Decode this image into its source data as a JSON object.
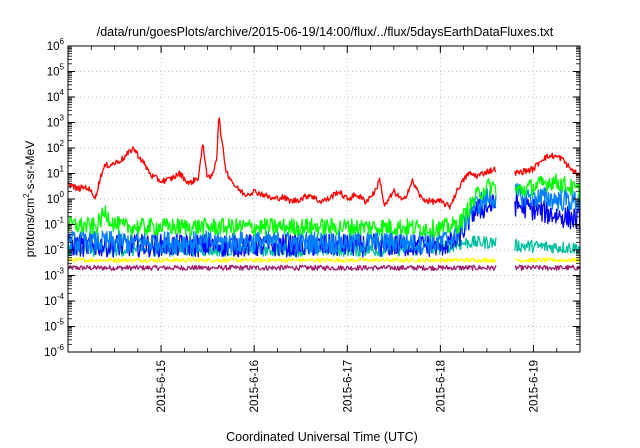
{
  "chart_data": {
    "type": "line",
    "title": "/data/run/goesPlots/archive/2015-06-19/14:00/flux/../flux/5daysEarthDataFluxes.txt",
    "xlabel": "Coordinated Universal Time (UTC)",
    "ylabel_parts": {
      "prefix": "protons/cm",
      "sup": "2",
      "suffix": "-s-sr-MeV"
    },
    "yscale": "log",
    "ylim_exp": [
      -6,
      6
    ],
    "ytick_exps": [
      -6,
      -5,
      -4,
      -3,
      -2,
      -1,
      0,
      1,
      2,
      3,
      4,
      5,
      6
    ],
    "ytick_base": "10",
    "xlim": [
      0,
      5.5
    ],
    "xtick_positions": [
      1,
      2,
      3,
      4,
      5
    ],
    "xtick_labels": [
      "2015-6-15",
      "2015-6-16",
      "2015-6-17",
      "2015-6-18",
      "2015-6-19"
    ],
    "grid": true,
    "legend": "none",
    "gaps": [
      [
        4.6,
        4.8
      ]
    ],
    "series": [
      {
        "color": "#ff0000",
        "noise": 0.12,
        "x": [
          0,
          0.1,
          0.2,
          0.3,
          0.35,
          0.4,
          0.5,
          0.6,
          0.7,
          0.8,
          0.9,
          1.0,
          1.1,
          1.2,
          1.3,
          1.4,
          1.45,
          1.5,
          1.55,
          1.6,
          1.62,
          1.65,
          1.7,
          1.8,
          1.9,
          2.0,
          2.1,
          2.2,
          2.3,
          2.4,
          2.5,
          2.6,
          2.7,
          2.8,
          2.9,
          3.0,
          3.1,
          3.2,
          3.3,
          3.35,
          3.4,
          3.5,
          3.6,
          3.7,
          3.8,
          3.9,
          4.0,
          4.1,
          4.2,
          4.3,
          4.4,
          4.5,
          4.6,
          4.8,
          5.0,
          5.1,
          5.2,
          5.3,
          5.4,
          5.5
        ],
        "y": [
          4,
          2.5,
          3,
          1.2,
          8,
          20,
          25,
          40,
          100,
          30,
          8,
          5,
          6,
          10,
          4,
          7,
          150,
          6,
          8,
          50,
          2000,
          200,
          12,
          3,
          1.5,
          2,
          1.5,
          1,
          1.2,
          0.8,
          1,
          1.5,
          0.8,
          1,
          2,
          1,
          1.5,
          0.8,
          2,
          6,
          0.5,
          2,
          0.8,
          5,
          1,
          0.8,
          0.8,
          0.5,
          3,
          10,
          8,
          12,
          15,
          10,
          15,
          40,
          50,
          40,
          15,
          8
        ]
      },
      {
        "color": "#00ff00",
        "noise": 0.35,
        "x": [
          0,
          0.3,
          0.4,
          0.5,
          0.6,
          0.8,
          1.0,
          1.5,
          2.0,
          2.5,
          3.0,
          3.5,
          4.0,
          4.2,
          4.3,
          4.4,
          4.5,
          4.6,
          4.8,
          5.0,
          5.2,
          5.3,
          5.5
        ],
        "y": [
          0.1,
          0.08,
          0.3,
          0.1,
          0.08,
          0.08,
          0.08,
          0.08,
          0.08,
          0.08,
          0.08,
          0.08,
          0.07,
          0.1,
          0.4,
          1.5,
          3,
          3,
          2,
          3,
          5,
          4,
          2
        ]
      },
      {
        "color": "#0080ff",
        "noise": 0.45,
        "x": [
          0,
          0.5,
          1.0,
          1.5,
          2.0,
          2.5,
          3.0,
          3.5,
          4.0,
          4.15,
          4.25,
          4.35,
          4.5,
          4.6,
          4.8,
          5.0,
          5.2,
          5.5
        ],
        "y": [
          0.02,
          0.02,
          0.02,
          0.02,
          0.02,
          0.02,
          0.02,
          0.02,
          0.02,
          0.03,
          0.1,
          0.5,
          1,
          1.2,
          1.5,
          1.2,
          1,
          0.8
        ]
      },
      {
        "color": "#0000ff",
        "noise": 0.45,
        "x": [
          0,
          0.5,
          1.0,
          1.5,
          2.0,
          2.5,
          3.0,
          3.5,
          4.0,
          4.15,
          4.25,
          4.35,
          4.5,
          4.6,
          4.8,
          5.0,
          5.2,
          5.5
        ],
        "y": [
          0.015,
          0.015,
          0.015,
          0.015,
          0.015,
          0.015,
          0.015,
          0.015,
          0.015,
          0.02,
          0.06,
          0.3,
          0.5,
          0.6,
          0.6,
          0.4,
          0.25,
          0.15
        ]
      },
      {
        "color": "#00c0a0",
        "noise": 0.25,
        "x": [
          0,
          0.5,
          1.0,
          1.5,
          2.0,
          2.5,
          3.0,
          3.5,
          4.0,
          4.3,
          4.6,
          4.8,
          5.5
        ],
        "y": [
          0.01,
          0.01,
          0.01,
          0.01,
          0.01,
          0.01,
          0.01,
          0.01,
          0.012,
          0.02,
          0.02,
          0.015,
          0.012
        ]
      },
      {
        "color": "#ffff00",
        "noise": 0.08,
        "x": [
          0,
          5.5
        ],
        "y": [
          0.004,
          0.004
        ]
      },
      {
        "color": "#a02070",
        "noise": 0.1,
        "x": [
          0,
          5.5
        ],
        "y": [
          0.002,
          0.002
        ]
      }
    ]
  }
}
